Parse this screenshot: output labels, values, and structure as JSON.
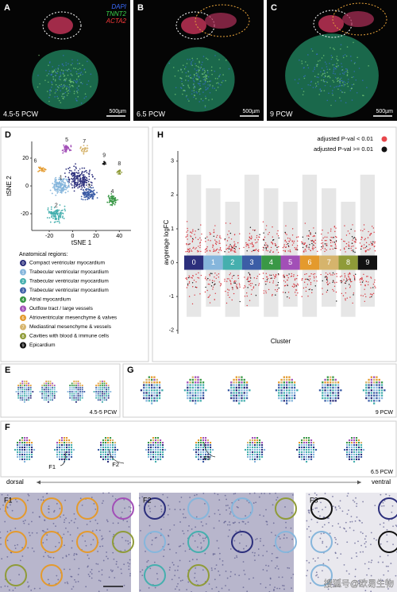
{
  "micro": [
    {
      "label": "A",
      "stage": "4.5-5 PCW",
      "scale": "500µm",
      "stains": [
        {
          "name": "DAPI",
          "color": "#3b6cff"
        },
        {
          "name": "TNNT2",
          "color": "#3bd14a"
        },
        {
          "name": "ACTA2",
          "color": "#ff3a3a"
        }
      ]
    },
    {
      "label": "B",
      "stage": "6.5 PCW",
      "scale": "500µm"
    },
    {
      "label": "C",
      "stage": "9 PCW",
      "scale": "500µm"
    }
  ],
  "tsne": {
    "label": "D",
    "xlabel": "tSNE 1",
    "ylabel": "tSNE 2",
    "xlim": [
      -35,
      50
    ],
    "ylim": [
      -32,
      32
    ],
    "xticks": [
      -20,
      0,
      20,
      40
    ],
    "yticks": [
      20,
      0,
      -20
    ],
    "legend_title": "Anatomical regions:",
    "clusters": [
      {
        "id": "0",
        "name": "Compact ventricular myocardium",
        "color": "#2c2f7c"
      },
      {
        "id": "1",
        "name": "Trabecular ventricular myocardium",
        "color": "#86b6dc"
      },
      {
        "id": "2",
        "name": "Trabecular ventricular myocardium",
        "color": "#45afae"
      },
      {
        "id": "3",
        "name": "Trabecular ventricular myocardium",
        "color": "#3c5da6"
      },
      {
        "id": "4",
        "name": "Atrial myocardium",
        "color": "#3a9846"
      },
      {
        "id": "5",
        "name": "Outflow tract / large vessels",
        "color": "#a24fb7"
      },
      {
        "id": "6",
        "name": "Atrioventricular mesenchyme & valves",
        "color": "#e49a2d"
      },
      {
        "id": "7",
        "name": "Mediastinal mesenchyme & vessels",
        "color": "#d6b46c"
      },
      {
        "id": "8",
        "name": "Cavities with blood & immune cells",
        "color": "#8f9b38"
      },
      {
        "id": "9",
        "name": "Epicardium",
        "color": "#111111"
      }
    ]
  },
  "logfc": {
    "label": "H",
    "ylabel": "avgerage logFC",
    "xlabel": "Cluster",
    "ylim": [
      -2.1,
      3.3
    ],
    "yticks": [
      -2,
      -1,
      0,
      1,
      2,
      3
    ],
    "legend": [
      {
        "name": "adjusted P-val < 0.01",
        "color": "#e8474c"
      },
      {
        "name": "adjusted  P-val >= 0.01",
        "color": "#111111"
      }
    ]
  },
  "spatial": {
    "E": {
      "label": "E",
      "stage": "4.5-5 PCW"
    },
    "G": {
      "label": "G",
      "stage": "9 PCW"
    },
    "F": {
      "label": "F",
      "stage": "6.5 PCW",
      "callouts": [
        "F1",
        "F2",
        "F3"
      ]
    },
    "axis": [
      "dorsal",
      "ventral"
    ]
  },
  "zooms": [
    "F1",
    "F2",
    "F3"
  ],
  "watermark": "搜狐号@欧易生物"
}
